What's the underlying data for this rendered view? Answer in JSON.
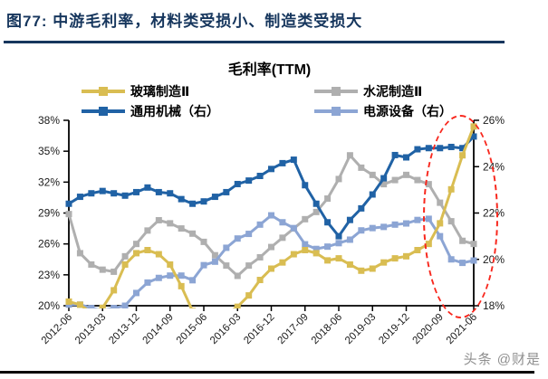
{
  "figure": {
    "title": "图77:  中游毛利率，材料类受损小、制造类受损大"
  },
  "chart": {
    "title": "毛利率(TTM)"
  },
  "legend": {
    "items": [
      {
        "label": "玻璃制造Ⅱ",
        "color": "#D9BD52"
      },
      {
        "label": "水泥制造Ⅱ",
        "color": "#AFAFAF"
      },
      {
        "label": "通用机械（右）",
        "color": "#2062A5"
      },
      {
        "label": "电源设备（右）",
        "color": "#8CA5D4"
      }
    ]
  },
  "watermark": "头条 @财是",
  "chart_data": {
    "type": "line",
    "title": "毛利率(TTM)",
    "x_quarters": [
      "2012-06",
      "2012-09",
      "2012-12",
      "2013-03",
      "2013-06",
      "2013-09",
      "2013-12",
      "2014-03",
      "2014-06",
      "2014-09",
      "2014-12",
      "2015-03",
      "2015-06",
      "2015-09",
      "2015-12",
      "2016-03",
      "2016-06",
      "2016-09",
      "2016-12",
      "2017-03",
      "2017-06",
      "2017-09",
      "2017-12",
      "2018-03",
      "2018-06",
      "2018-09",
      "2018-12",
      "2019-03",
      "2019-06",
      "2019-09",
      "2019-12",
      "2020-03",
      "2020-06",
      "2020-09",
      "2020-12",
      "2021-03",
      "2021-06"
    ],
    "x_labels_shown": [
      "2012-06",
      "2013-03",
      "2013-12",
      "2014-09",
      "2015-06",
      "2016-03",
      "2016-12",
      "2017-09",
      "2018-06",
      "2019-03",
      "2019-12",
      "2020-09",
      "2021-06"
    ],
    "x_label_every_n": 3,
    "left_axis": {
      "min": 20,
      "max": 38,
      "ticks": [
        38,
        35,
        32,
        29,
        26,
        23,
        20
      ],
      "unit": "%"
    },
    "right_axis": {
      "min": 18,
      "max": 26,
      "ticks": [
        26,
        24,
        22,
        20,
        18
      ],
      "unit": "%"
    },
    "grid": false,
    "legend_position": "top",
    "series": [
      {
        "name": "水泥制造Ⅱ",
        "axis": "left",
        "color": "#AFAFAF",
        "values": [
          28.9,
          25.1,
          24.0,
          23.5,
          23.3,
          24.8,
          26.0,
          27.3,
          28.3,
          28.0,
          27.5,
          27.0,
          26.2,
          24.9,
          23.9,
          22.9,
          23.9,
          24.7,
          25.7,
          26.6,
          27.5,
          28.4,
          29.1,
          30.4,
          32.3,
          34.6,
          33.4,
          32.7,
          31.8,
          32.2,
          32.7,
          32.2,
          31.8,
          30.0,
          28.2,
          26.3,
          26.0
        ]
      },
      {
        "name": "电源设备（右）",
        "axis": "right",
        "color": "#8CA5D4",
        "values": [
          18.05,
          18.05,
          17.9,
          17.8,
          17.9,
          18.0,
          18.55,
          19.0,
          19.2,
          19.3,
          19.3,
          19.1,
          19.75,
          19.9,
          20.5,
          20.9,
          21.1,
          21.5,
          21.9,
          21.6,
          21.35,
          20.65,
          20.45,
          20.55,
          20.7,
          20.85,
          21.25,
          21.35,
          21.4,
          21.5,
          21.55,
          21.7,
          21.75,
          21.0,
          20.0,
          19.85,
          19.95
        ]
      },
      {
        "name": "通用机械（右）",
        "axis": "right",
        "color": "#2062A5",
        "values": [
          22.4,
          22.7,
          22.85,
          22.95,
          22.85,
          22.75,
          22.9,
          23.1,
          22.9,
          22.85,
          22.6,
          22.4,
          22.5,
          22.7,
          22.9,
          23.25,
          23.4,
          23.6,
          23.9,
          24.15,
          24.3,
          23.2,
          22.4,
          21.6,
          21.0,
          21.7,
          22.2,
          22.8,
          23.5,
          24.5,
          24.4,
          24.75,
          24.8,
          24.8,
          24.85,
          24.8,
          25.3
        ]
      },
      {
        "name": "玻璃制造Ⅱ",
        "axis": "left",
        "color": "#D9BD52",
        "values": [
          20.4,
          20.1,
          19.3,
          19.8,
          21.5,
          24.0,
          25.1,
          25.4,
          25.0,
          24.0,
          21.9,
          19.5,
          19.0,
          18.9,
          19.2,
          19.9,
          21.0,
          22.5,
          23.6,
          24.2,
          25.0,
          25.4,
          25.1,
          24.4,
          24.6,
          24.0,
          23.4,
          23.6,
          24.2,
          24.6,
          24.8,
          25.4,
          26.0,
          28.0,
          31.3,
          34.6,
          37.4
        ]
      }
    ],
    "annotation": {
      "shape": "dashed-ellipse",
      "color": "#F8271D",
      "highlights": "2020-09 to 2021-06"
    }
  }
}
